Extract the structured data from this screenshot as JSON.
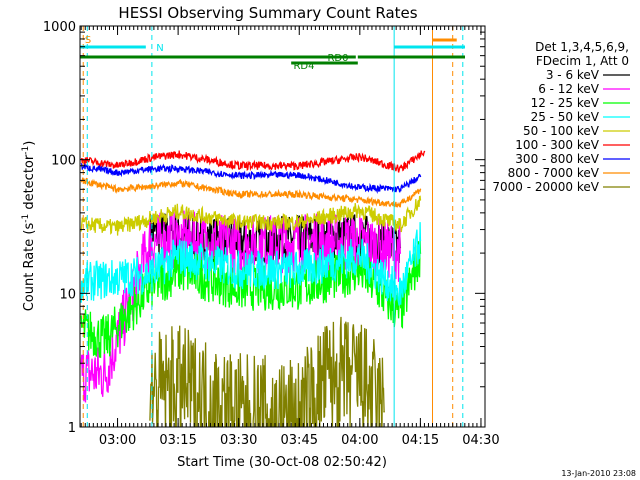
{
  "chart_data": {
    "type": "line",
    "title": "HESSI Observing Summary Count Rates",
    "xlabel": "Start Time (30-Oct-08 02:50:42)",
    "ylabel_prefix": "Count Rate (s",
    "ylabel_sup": "-1",
    "ylabel_mid": " detector",
    "ylabel_sup2": "-1",
    "ylabel_suffix": ")",
    "yscale": "log",
    "ylim": [
      1,
      1000
    ],
    "xlim": [
      "02:50:42",
      "04:31:00"
    ],
    "grid": false,
    "legend_position": "right",
    "timestamp": "13-Jan-2010 23:08",
    "x_ticks": [
      {
        "t": "03:00",
        "label": "03:00"
      },
      {
        "t": "03:15",
        "label": "03:15"
      },
      {
        "t": "03:30",
        "label": "03:30"
      },
      {
        "t": "03:45",
        "label": "03:45"
      },
      {
        "t": "04:00",
        "label": "04:00"
      },
      {
        "t": "04:15",
        "label": "04:15"
      },
      {
        "t": "04:30",
        "label": "04:30"
      }
    ],
    "y_ticks": [
      {
        "v": 1,
        "label": "1"
      },
      {
        "v": 10,
        "label": "10"
      },
      {
        "v": 100,
        "label": "100"
      },
      {
        "v": 1000,
        "label": "1000"
      }
    ],
    "legend_header": [
      "Det 1,3,4,5,6,9,",
      "FDecim 1, Att 0"
    ],
    "flag_labels": [
      {
        "text": "S",
        "color": "#ff8c00"
      },
      {
        "text": "N",
        "color": "#00e5ee"
      },
      {
        "text": "RD0",
        "color": "#007f00"
      },
      {
        "text": "RD4",
        "color": "#007f00"
      }
    ],
    "series": [
      {
        "name": "3 - 6 keV",
        "color": "#000000",
        "points": [
          [
            "03:08",
            28
          ],
          [
            "03:15",
            28
          ],
          [
            "03:30",
            24
          ],
          [
            "03:45",
            26
          ],
          [
            "04:00",
            27
          ],
          [
            "04:10",
            22
          ]
        ]
      },
      {
        "name": "6 - 12 keV",
        "color": "#ff00ff",
        "points": [
          [
            "02:51",
            2.5
          ],
          [
            "02:57",
            2.5
          ],
          [
            "03:08",
            24
          ],
          [
            "03:15",
            25
          ],
          [
            "03:30",
            23
          ],
          [
            "03:45",
            24
          ],
          [
            "04:00",
            24
          ],
          [
            "04:10",
            20
          ]
        ]
      },
      {
        "name": "12 - 25 keV",
        "color": "#00ff00",
        "points": [
          [
            "02:51",
            5.5
          ],
          [
            "02:57",
            4.5
          ],
          [
            "03:08",
            11
          ],
          [
            "03:15",
            15
          ],
          [
            "03:30",
            11
          ],
          [
            "03:45",
            11
          ],
          [
            "04:00",
            15
          ],
          [
            "04:10",
            7
          ],
          [
            "04:15",
            20
          ]
        ]
      },
      {
        "name": "25 - 50 keV",
        "color": "#00ffff",
        "points": [
          [
            "02:51",
            12
          ],
          [
            "03:08",
            14
          ],
          [
            "03:15",
            19
          ],
          [
            "03:30",
            15
          ],
          [
            "03:45",
            15
          ],
          [
            "04:00",
            19
          ],
          [
            "04:10",
            10
          ],
          [
            "04:15",
            25
          ]
        ]
      },
      {
        "name": "50 - 100 keV",
        "color": "#cccc00",
        "points": [
          [
            "02:51",
            33
          ],
          [
            "03:00",
            31
          ],
          [
            "03:08",
            36
          ],
          [
            "03:15",
            41
          ],
          [
            "03:30",
            34
          ],
          [
            "03:45",
            34
          ],
          [
            "04:00",
            42
          ],
          [
            "04:10",
            32
          ],
          [
            "04:15",
            50
          ]
        ]
      },
      {
        "name": "100 - 300 keV",
        "color": "#ff0000",
        "points": [
          [
            "02:51",
            100
          ],
          [
            "03:00",
            90
          ],
          [
            "03:08",
            103
          ],
          [
            "03:15",
            110
          ],
          [
            "03:30",
            90
          ],
          [
            "03:45",
            90
          ],
          [
            "04:00",
            105
          ],
          [
            "04:10",
            85
          ],
          [
            "04:16",
            115
          ]
        ]
      },
      {
        "name": "300 - 800 keV",
        "color": "#0000ff",
        "points": [
          [
            "02:51",
            89
          ],
          [
            "03:00",
            80
          ],
          [
            "03:08",
            85
          ],
          [
            "03:15",
            86
          ],
          [
            "03:30",
            76
          ],
          [
            "03:45",
            77
          ],
          [
            "04:00",
            62
          ],
          [
            "04:10",
            60
          ],
          [
            "04:15",
            75
          ]
        ]
      },
      {
        "name": "800 - 7000 keV",
        "color": "#ff8c00",
        "points": [
          [
            "02:51",
            70
          ],
          [
            "03:00",
            60
          ],
          [
            "03:08",
            63
          ],
          [
            "03:15",
            67
          ],
          [
            "03:30",
            55
          ],
          [
            "03:45",
            55
          ],
          [
            "04:00",
            50
          ],
          [
            "04:10",
            46
          ],
          [
            "04:15",
            60
          ]
        ]
      },
      {
        "name": "7000 - 20000 keV",
        "color": "#808000",
        "points": [
          [
            "03:08",
            1.8
          ],
          [
            "03:15",
            2.1
          ],
          [
            "03:30",
            1.3
          ],
          [
            "03:45",
            1.2
          ],
          [
            "03:52",
            2.4
          ],
          [
            "04:00",
            2.4
          ],
          [
            "04:06",
            1.3
          ]
        ]
      }
    ]
  }
}
